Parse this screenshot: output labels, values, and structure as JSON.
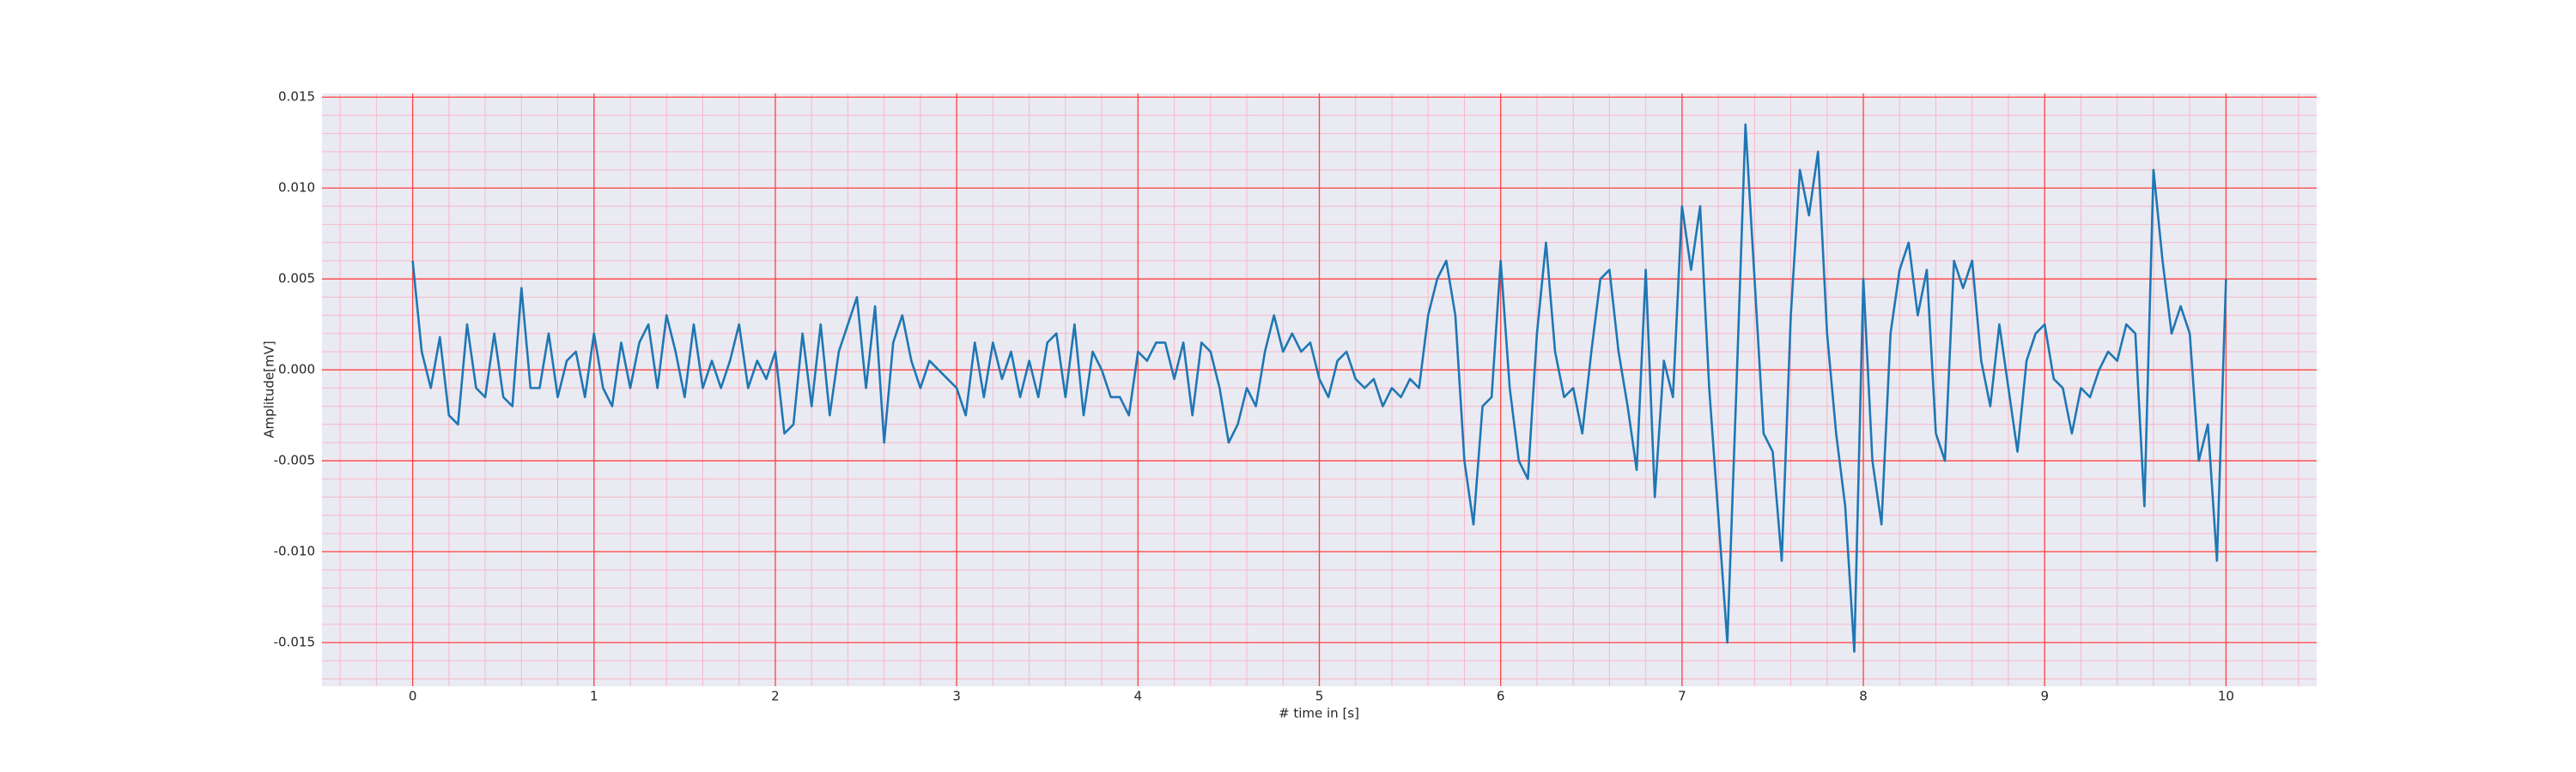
{
  "chart_data": {
    "type": "line",
    "xlabel": "# time in [s]",
    "ylabel": "Amplitude[mV]",
    "xlim": [
      -0.5,
      10.5
    ],
    "ylim": [
      -0.0174,
      0.0152
    ],
    "xticks": [
      0,
      1,
      2,
      3,
      4,
      5,
      6,
      7,
      8,
      9,
      10
    ],
    "yticks": [
      -0.015,
      {
        "value": -0.01,
        "label": "-0.010"
      },
      -0.005,
      {
        "value": 0,
        "label": "0.000"
      },
      0.005,
      {
        "value": 0.01,
        "label": "0.010"
      },
      0.015
    ],
    "xminorticks": [
      -0.4,
      -0.2,
      0.2,
      0.4,
      0.6,
      0.8,
      1.2,
      1.4,
      1.6,
      1.8,
      2.2,
      2.4,
      2.6,
      2.8,
      3.2,
      3.4,
      3.6,
      3.8,
      4.2,
      4.4,
      4.6,
      4.8,
      5.2,
      5.4,
      5.6,
      5.8,
      6.2,
      6.4,
      6.6,
      6.8,
      7.2,
      7.4,
      7.6,
      7.8,
      8.2,
      8.4,
      8.6,
      8.8,
      9.2,
      9.4,
      9.6,
      9.8,
      10.2,
      10.4
    ],
    "yminorticks": [
      -0.017,
      -0.016,
      -0.014,
      -0.013,
      -0.012,
      -0.011,
      -0.009,
      -0.008,
      -0.007,
      -0.006,
      -0.004,
      -0.003,
      -0.002,
      -0.001,
      0.001,
      0.002,
      0.003,
      0.004,
      0.006,
      0.007,
      0.008,
      0.009,
      0.011,
      0.012,
      0.013,
      0.014
    ],
    "grid": true,
    "grid_color": "#ff4040",
    "minor_grid_color": "#f7b8c8",
    "background": "#eaeaf2",
    "series": [
      {
        "color": "#1f77b4",
        "x": [
          0,
          0.05,
          0.1,
          0.15,
          0.2,
          0.25,
          0.3,
          0.35,
          0.4,
          0.45,
          0.5,
          0.55,
          0.6,
          0.65,
          0.7,
          0.75,
          0.8,
          0.85,
          0.9,
          0.95,
          1,
          1.05,
          1.1,
          1.15,
          1.2,
          1.25,
          1.3,
          1.35,
          1.4,
          1.45,
          1.5,
          1.55,
          1.6,
          1.65,
          1.7,
          1.75,
          1.8,
          1.85,
          1.9,
          1.95,
          2,
          2.05,
          2.1,
          2.15,
          2.2,
          2.25,
          2.3,
          2.35,
          2.4,
          2.45,
          2.5,
          2.55,
          2.6,
          2.65,
          2.7,
          2.75,
          2.8,
          2.85,
          2.9,
          2.95,
          3,
          3.05,
          3.1,
          3.15,
          3.2,
          3.25,
          3.3,
          3.35,
          3.4,
          3.45,
          3.5,
          3.55,
          3.6,
          3.65,
          3.7,
          3.75,
          3.8,
          3.85,
          3.9,
          3.95,
          4,
          4.05,
          4.1,
          4.15,
          4.2,
          4.25,
          4.3,
          4.35,
          4.4,
          4.45,
          4.5,
          4.55,
          4.6,
          4.65,
          4.7,
          4.75,
          4.8,
          4.85,
          4.9,
          4.95,
          5,
          5.05,
          5.1,
          5.15,
          5.2,
          5.25,
          5.3,
          5.35,
          5.4,
          5.45,
          5.5,
          5.55,
          5.6,
          5.65,
          5.7,
          5.75,
          5.8,
          5.85,
          5.9,
          5.95,
          6,
          6.05,
          6.1,
          6.15,
          6.2,
          6.25,
          6.3,
          6.35,
          6.4,
          6.45,
          6.5,
          6.55,
          6.6,
          6.65,
          6.7,
          6.75,
          6.8,
          6.85,
          6.9,
          6.95,
          7,
          7.05,
          7.1,
          7.15,
          7.2,
          7.25,
          7.3,
          7.35,
          7.4,
          7.45,
          7.5,
          7.55,
          7.6,
          7.65,
          7.7,
          7.75,
          7.8,
          7.85,
          7.9,
          7.95,
          8,
          8.05,
          8.1,
          8.15,
          8.2,
          8.25,
          8.3,
          8.35,
          8.4,
          8.45,
          8.5,
          8.55,
          8.6,
          8.65,
          8.7,
          8.75,
          8.8,
          8.85,
          8.9,
          8.95,
          9,
          9.05,
          9.1,
          9.15,
          9.2,
          9.25,
          9.3,
          9.35,
          9.4,
          9.45,
          9.5,
          9.55,
          9.6,
          9.65,
          9.7,
          9.75,
          9.8,
          9.85,
          9.9,
          9.95,
          10
        ],
        "values": [
          0.006,
          0.001,
          -0.001,
          0.0018,
          -0.0025,
          -0.003,
          0.0025,
          -0.001,
          -0.0015,
          0.002,
          -0.0015,
          -0.002,
          0.0045,
          -0.001,
          -0.001,
          0.002,
          -0.0015,
          0.0005,
          0.001,
          -0.0015,
          0.002,
          -0.001,
          -0.002,
          0.0015,
          -0.001,
          0.0015,
          0.0025,
          -0.001,
          0.003,
          0.001,
          -0.0015,
          0.0025,
          -0.001,
          0.0005,
          -0.001,
          0.0005,
          0.0025,
          -0.001,
          0.0005,
          -0.0005,
          0.001,
          -0.0035,
          -0.003,
          0.002,
          -0.002,
          0.0025,
          -0.0025,
          0.001,
          0.0025,
          0.004,
          -0.001,
          0.0035,
          -0.004,
          0.0015,
          0.003,
          0.0005,
          -0.001,
          0.0005,
          0,
          -0.0005,
          -0.001,
          -0.0025,
          0.0015,
          -0.0015,
          0.0015,
          -0.0005,
          0.001,
          -0.0015,
          0.0005,
          -0.0015,
          0.0015,
          0.002,
          -0.0015,
          0.0025,
          -0.0025,
          0.001,
          0,
          -0.0015,
          -0.0015,
          -0.0025,
          0.001,
          0.0005,
          0.0015,
          0.0015,
          -0.0005,
          0.0015,
          -0.0025,
          0.0015,
          0.001,
          -0.001,
          -0.004,
          -0.003,
          -0.001,
          -0.002,
          0.001,
          0.003,
          0.001,
          0.002,
          0.001,
          0.0015,
          -0.0005,
          -0.0015,
          0.0005,
          0.001,
          -0.0005,
          -0.001,
          -0.0005,
          -0.002,
          -0.001,
          -0.0015,
          -0.0005,
          -0.001,
          0.003,
          0.005,
          0.006,
          0.003,
          -0.005,
          -0.0085,
          -0.002,
          -0.0015,
          0.006,
          -0.001,
          -0.005,
          -0.006,
          0.002,
          0.007,
          0.001,
          -0.0015,
          -0.001,
          -0.0035,
          0.001,
          0.005,
          0.0055,
          0.001,
          -0.002,
          -0.0055,
          0.0055,
          -0.007,
          0.0005,
          -0.0015,
          0.009,
          0.0055,
          0.009,
          -0.001,
          -0.008,
          -0.015,
          -0.001,
          0.0135,
          0.005,
          -0.0035,
          -0.0045,
          -0.0105,
          0.003,
          0.011,
          0.0085,
          0.012,
          0.002,
          -0.0035,
          -0.0075,
          -0.0155,
          0.005,
          -0.005,
          -0.0085,
          0.002,
          0.0055,
          0.007,
          0.003,
          0.0055,
          -0.0035,
          -0.005,
          0.006,
          0.0045,
          0.006,
          0.0005,
          -0.002,
          0.0025,
          -0.001,
          -0.0045,
          0.0005,
          0.002,
          0.0025,
          -0.0005,
          -0.001,
          -0.0035,
          -0.001,
          -0.0015,
          0,
          0.001,
          0.0005,
          0.0025,
          0.002,
          -0.0075,
          0.011,
          0.006,
          0.002,
          0.0035,
          0.002,
          -0.005,
          -0.003,
          -0.0105,
          0.005
        ]
      }
    ]
  }
}
